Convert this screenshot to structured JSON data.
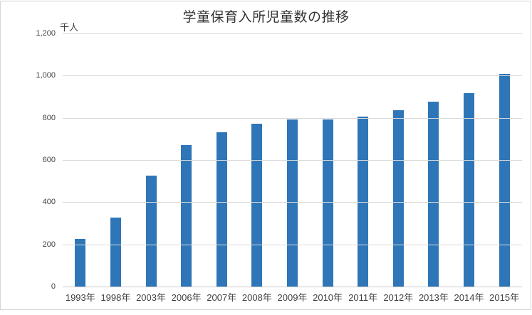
{
  "chart_data": {
    "type": "bar",
    "title": "学童保育入所児童数の推移",
    "xlabel": "",
    "ylabel": "千人",
    "categories": [
      "1993年",
      "1998年",
      "2003年",
      "2006年",
      "2007年",
      "2008年",
      "2009年",
      "2010年",
      "2011年",
      "2012年",
      "2013年",
      "2014年",
      "2015年"
    ],
    "values": [
      230,
      330,
      530,
      675,
      735,
      775,
      795,
      795,
      810,
      840,
      880,
      920,
      1010
    ],
    "ylim": [
      0,
      1200
    ],
    "yticks": [
      0,
      200,
      400,
      600,
      800,
      1000,
      1200
    ],
    "ytick_labels": [
      "0",
      "200",
      "400",
      "600",
      "800",
      "1,000",
      "1,200"
    ],
    "grid": "horizontal",
    "legend_position": "none"
  },
  "colors": {
    "bar": "#2e76b8",
    "gridline": "#d9d9d9",
    "axis_line": "#c9c9c9",
    "text": "#404040",
    "title_text": "#333333",
    "border": "#d5d5d5",
    "background": "#ffffff"
  }
}
